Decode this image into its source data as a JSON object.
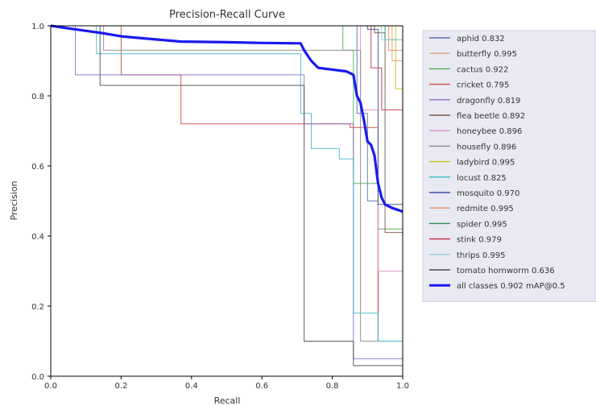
{
  "chart_data": {
    "type": "line",
    "title": "Precision-Recall Curve",
    "xlabel": "Recall",
    "ylabel": "Precision",
    "xlim": [
      0,
      1
    ],
    "ylim": [
      0,
      1
    ],
    "xticks": [
      "0.0",
      "0.2",
      "0.4",
      "0.6",
      "0.8",
      "1.0"
    ],
    "yticks": [
      "0.0",
      "0.2",
      "0.4",
      "0.6",
      "0.8",
      "1.0"
    ],
    "grid": false,
    "legend": "outside-right",
    "series": [
      {
        "name": "aphid",
        "label": "aphid 0.832",
        "color": "#5a6fb3",
        "width": 1,
        "points": [
          [
            0,
            1
          ],
          [
            0.87,
            1
          ],
          [
            0.87,
            0.75
          ],
          [
            0.9,
            0.75
          ],
          [
            0.9,
            0.5
          ],
          [
            0.93,
            0.5
          ],
          [
            0.93,
            0.1
          ],
          [
            1,
            0.1
          ],
          [
            1,
            0
          ]
        ]
      },
      {
        "name": "butterfly",
        "label": "butterfly 0.995",
        "color": "#e8a070",
        "width": 1,
        "points": [
          [
            0,
            1
          ],
          [
            0.97,
            1
          ],
          [
            0.97,
            0.9
          ],
          [
            1,
            0.9
          ],
          [
            1,
            0
          ]
        ]
      },
      {
        "name": "cactus",
        "label": "cactus 0.922",
        "color": "#4caf50",
        "width": 1,
        "points": [
          [
            0,
            1
          ],
          [
            0.83,
            1
          ],
          [
            0.83,
            0.93
          ],
          [
            0.86,
            0.93
          ],
          [
            0.86,
            0.55
          ],
          [
            0.93,
            0.55
          ],
          [
            0.93,
            0.42
          ],
          [
            1,
            0.42
          ],
          [
            1,
            0
          ]
        ]
      },
      {
        "name": "cricket",
        "label": "cricket 0.795",
        "color": "#d04a3a",
        "width": 1,
        "points": [
          [
            0,
            1
          ],
          [
            0.2,
            1
          ],
          [
            0.2,
            0.86
          ],
          [
            0.31,
            0.86
          ],
          [
            0.31,
            0.86
          ],
          [
            0.37,
            0.86
          ],
          [
            0.37,
            0.72
          ],
          [
            0.85,
            0.72
          ],
          [
            0.85,
            0.71
          ],
          [
            0.93,
            0.71
          ],
          [
            0.93,
            0.1
          ],
          [
            1,
            0.1
          ],
          [
            1,
            0
          ]
        ]
      },
      {
        "name": "dragonfly",
        "label": "dragonfly 0.819",
        "color": "#8e6cc0",
        "width": 1,
        "points": [
          [
            0,
            1
          ],
          [
            0.07,
            1
          ],
          [
            0.07,
            0.86
          ],
          [
            0.72,
            0.86
          ],
          [
            0.72,
            0.72
          ],
          [
            0.86,
            0.72
          ],
          [
            0.86,
            0.05
          ],
          [
            1,
            0.05
          ],
          [
            1,
            0
          ]
        ]
      },
      {
        "name": "flea beetle",
        "label": "flea beetle 0.892",
        "color": "#7a5a4a",
        "width": 1,
        "points": [
          [
            0,
            1
          ],
          [
            0.92,
            1
          ],
          [
            0.92,
            0.98
          ],
          [
            0.95,
            0.98
          ],
          [
            0.95,
            0.41
          ],
          [
            1,
            0.41
          ],
          [
            1,
            0
          ]
        ]
      },
      {
        "name": "honeybee",
        "label": "honeybee 0.896",
        "color": "#e38ac8",
        "width": 1,
        "points": [
          [
            0,
            1
          ],
          [
            0.88,
            1
          ],
          [
            0.88,
            0.76
          ],
          [
            0.93,
            0.76
          ],
          [
            0.93,
            0.3
          ],
          [
            1,
            0.3
          ],
          [
            1,
            0
          ]
        ]
      },
      {
        "name": "housefly",
        "label": "housefly 0.896",
        "color": "#8a8a8a",
        "width": 1,
        "points": [
          [
            0,
            1
          ],
          [
            0.15,
            1
          ],
          [
            0.15,
            0.93
          ],
          [
            0.88,
            0.93
          ],
          [
            0.88,
            0.1
          ],
          [
            1,
            0.1
          ],
          [
            1,
            0
          ]
        ]
      },
      {
        "name": "ladybird",
        "label": "ladybird 0.995",
        "color": "#c2c21a",
        "width": 1,
        "points": [
          [
            0,
            1
          ],
          [
            0.98,
            1
          ],
          [
            0.98,
            0.82
          ],
          [
            1,
            0.82
          ],
          [
            1,
            0
          ]
        ]
      },
      {
        "name": "locust",
        "label": "locust 0.825",
        "color": "#3fb8cc",
        "width": 1,
        "points": [
          [
            0,
            1
          ],
          [
            0.13,
            1
          ],
          [
            0.13,
            0.92
          ],
          [
            0.71,
            0.92
          ],
          [
            0.71,
            0.75
          ],
          [
            0.74,
            0.75
          ],
          [
            0.74,
            0.65
          ],
          [
            0.82,
            0.65
          ],
          [
            0.82,
            0.62
          ],
          [
            0.86,
            0.62
          ],
          [
            0.86,
            0.18
          ],
          [
            0.93,
            0.18
          ],
          [
            0.93,
            0.1
          ],
          [
            1,
            0.1
          ],
          [
            1,
            0
          ]
        ]
      },
      {
        "name": "mosquito",
        "label": "mosquito 0.970",
        "color": "#3b4fa0",
        "width": 1,
        "points": [
          [
            0,
            1
          ],
          [
            0.9,
            1
          ],
          [
            0.9,
            0.99
          ],
          [
            0.93,
            0.99
          ],
          [
            0.93,
            0.49
          ],
          [
            1,
            0.49
          ],
          [
            1,
            0
          ]
        ]
      },
      {
        "name": "redmite",
        "label": "redmite 0.995",
        "color": "#f08a6a",
        "width": 1,
        "points": [
          [
            0,
            1
          ],
          [
            0.96,
            1
          ],
          [
            0.96,
            0.93
          ],
          [
            1,
            0.93
          ],
          [
            1,
            0
          ]
        ]
      },
      {
        "name": "spider",
        "label": "spider 0.995",
        "color": "#2e8b57",
        "width": 1,
        "points": [
          [
            0,
            1
          ],
          [
            0.95,
            1
          ],
          [
            0.95,
            0.96
          ],
          [
            1,
            0.96
          ],
          [
            1,
            0
          ]
        ]
      },
      {
        "name": "stink",
        "label": "stink 0.979",
        "color": "#c0304a",
        "width": 1,
        "points": [
          [
            0,
            1
          ],
          [
            0.91,
            1
          ],
          [
            0.91,
            0.88
          ],
          [
            0.94,
            0.88
          ],
          [
            0.94,
            0.76
          ],
          [
            1,
            0.76
          ],
          [
            1,
            0
          ]
        ]
      },
      {
        "name": "thrips",
        "label": "thrips 0.995",
        "color": "#8ed1e0",
        "width": 1,
        "points": [
          [
            0,
            1
          ],
          [
            0.94,
            1
          ],
          [
            0.94,
            0.96
          ],
          [
            1,
            0.96
          ],
          [
            1,
            0
          ]
        ]
      },
      {
        "name": "tomato hornworm",
        "label": "tomato hornworm 0.636",
        "color": "#4a4a4a",
        "width": 1,
        "points": [
          [
            0,
            1
          ],
          [
            0.14,
            1
          ],
          [
            0.14,
            0.83
          ],
          [
            0.72,
            0.83
          ],
          [
            0.72,
            0.1
          ],
          [
            0.86,
            0.1
          ],
          [
            0.86,
            0.03
          ],
          [
            1,
            0.03
          ],
          [
            1,
            0
          ]
        ]
      },
      {
        "name": "all classes",
        "label": "all classes 0.902 mAP@0.5",
        "color": "#1a1aee",
        "width": 3.2,
        "points": [
          [
            0,
            1
          ],
          [
            0.07,
            0.99
          ],
          [
            0.14,
            0.98
          ],
          [
            0.2,
            0.97
          ],
          [
            0.31,
            0.96
          ],
          [
            0.37,
            0.955
          ],
          [
            0.5,
            0.953
          ],
          [
            0.6,
            0.951
          ],
          [
            0.71,
            0.95
          ],
          [
            0.72,
            0.93
          ],
          [
            0.74,
            0.9
          ],
          [
            0.76,
            0.88
          ],
          [
            0.8,
            0.875
          ],
          [
            0.84,
            0.87
          ],
          [
            0.86,
            0.86
          ],
          [
            0.87,
            0.8
          ],
          [
            0.88,
            0.78
          ],
          [
            0.89,
            0.73
          ],
          [
            0.9,
            0.67
          ],
          [
            0.91,
            0.66
          ],
          [
            0.92,
            0.63
          ],
          [
            0.93,
            0.55
          ],
          [
            0.94,
            0.51
          ],
          [
            0.95,
            0.49
          ],
          [
            0.97,
            0.48
          ],
          [
            1,
            0.47
          ]
        ]
      }
    ]
  }
}
